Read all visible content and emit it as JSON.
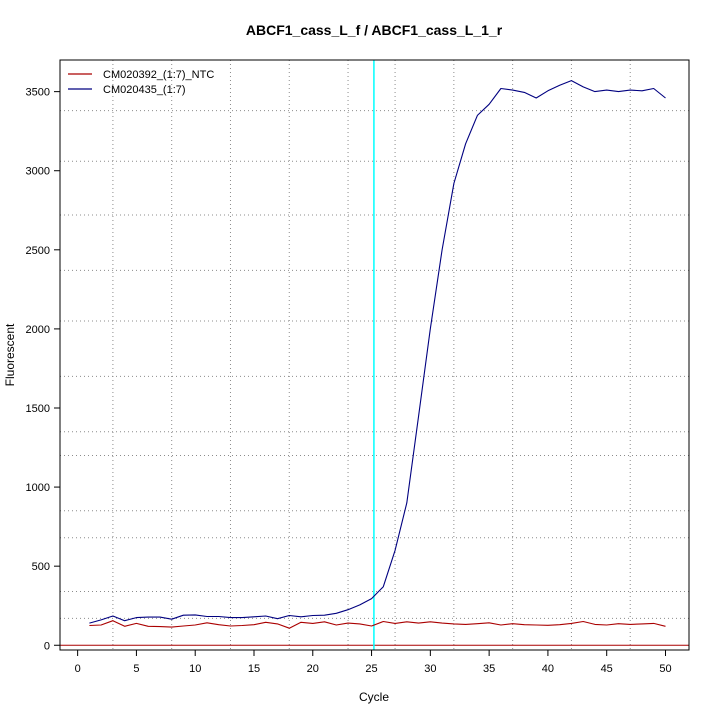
{
  "chart_data": {
    "type": "line",
    "title": "ABCF1_cass_L_f / ABCF1_cass_L_1_r",
    "xlabel": "Cycle",
    "ylabel": "Fluorescent",
    "xlim": [
      -1.5,
      52
    ],
    "ylim": [
      -30,
      3700
    ],
    "x_ticks": [
      0,
      5,
      10,
      15,
      20,
      25,
      30,
      35,
      40,
      45,
      50
    ],
    "y_ticks": [
      0,
      500,
      1000,
      1500,
      2000,
      2500,
      3000,
      3500
    ],
    "x_grid": [
      3,
      8,
      13,
      18,
      23,
      27,
      32,
      37,
      42,
      47
    ],
    "y_grid": [
      170,
      340,
      680,
      850,
      1200,
      1350,
      1700,
      2050,
      2370,
      2720,
      3060,
      3380
    ],
    "grid": true,
    "legend_position": "top-left",
    "threshold": {
      "x": 25.2,
      "color": "#00ffff"
    },
    "baseline": {
      "y": 0,
      "color": "#aa0000"
    },
    "x": [
      1,
      2,
      3,
      4,
      5,
      6,
      7,
      8,
      9,
      10,
      11,
      12,
      13,
      14,
      15,
      16,
      17,
      18,
      19,
      20,
      21,
      22,
      23,
      24,
      25,
      26,
      27,
      28,
      29,
      30,
      31,
      32,
      33,
      34,
      35,
      36,
      37,
      38,
      39,
      40,
      41,
      42,
      43,
      44,
      45,
      46,
      47,
      48,
      49,
      50
    ],
    "series": [
      {
        "name": "CM020392_(1:7)_NTC",
        "color": "#aa0000",
        "values": [
          125,
          128,
          155,
          120,
          138,
          120,
          118,
          115,
          122,
          128,
          142,
          130,
          122,
          125,
          130,
          145,
          135,
          108,
          145,
          138,
          148,
          128,
          140,
          135,
          122,
          150,
          138,
          148,
          140,
          148,
          140,
          135,
          132,
          136,
          142,
          128,
          136,
          130,
          128,
          126,
          130,
          138,
          150,
          132,
          128,
          136,
          132,
          135,
          138,
          120
        ]
      },
      {
        "name": "CM020435_(1:7)",
        "color": "#000080",
        "values": [
          140,
          160,
          185,
          155,
          175,
          178,
          178,
          165,
          190,
          192,
          182,
          182,
          175,
          175,
          180,
          185,
          168,
          188,
          180,
          188,
          190,
          202,
          225,
          255,
          295,
          370,
          600,
          900,
          1450,
          2000,
          2500,
          2920,
          3170,
          3350,
          3420,
          3520,
          3510,
          3495,
          3460,
          3505,
          3540,
          3570,
          3530,
          3500,
          3510,
          3500,
          3510,
          3505,
          3520,
          3460
        ]
      }
    ]
  }
}
